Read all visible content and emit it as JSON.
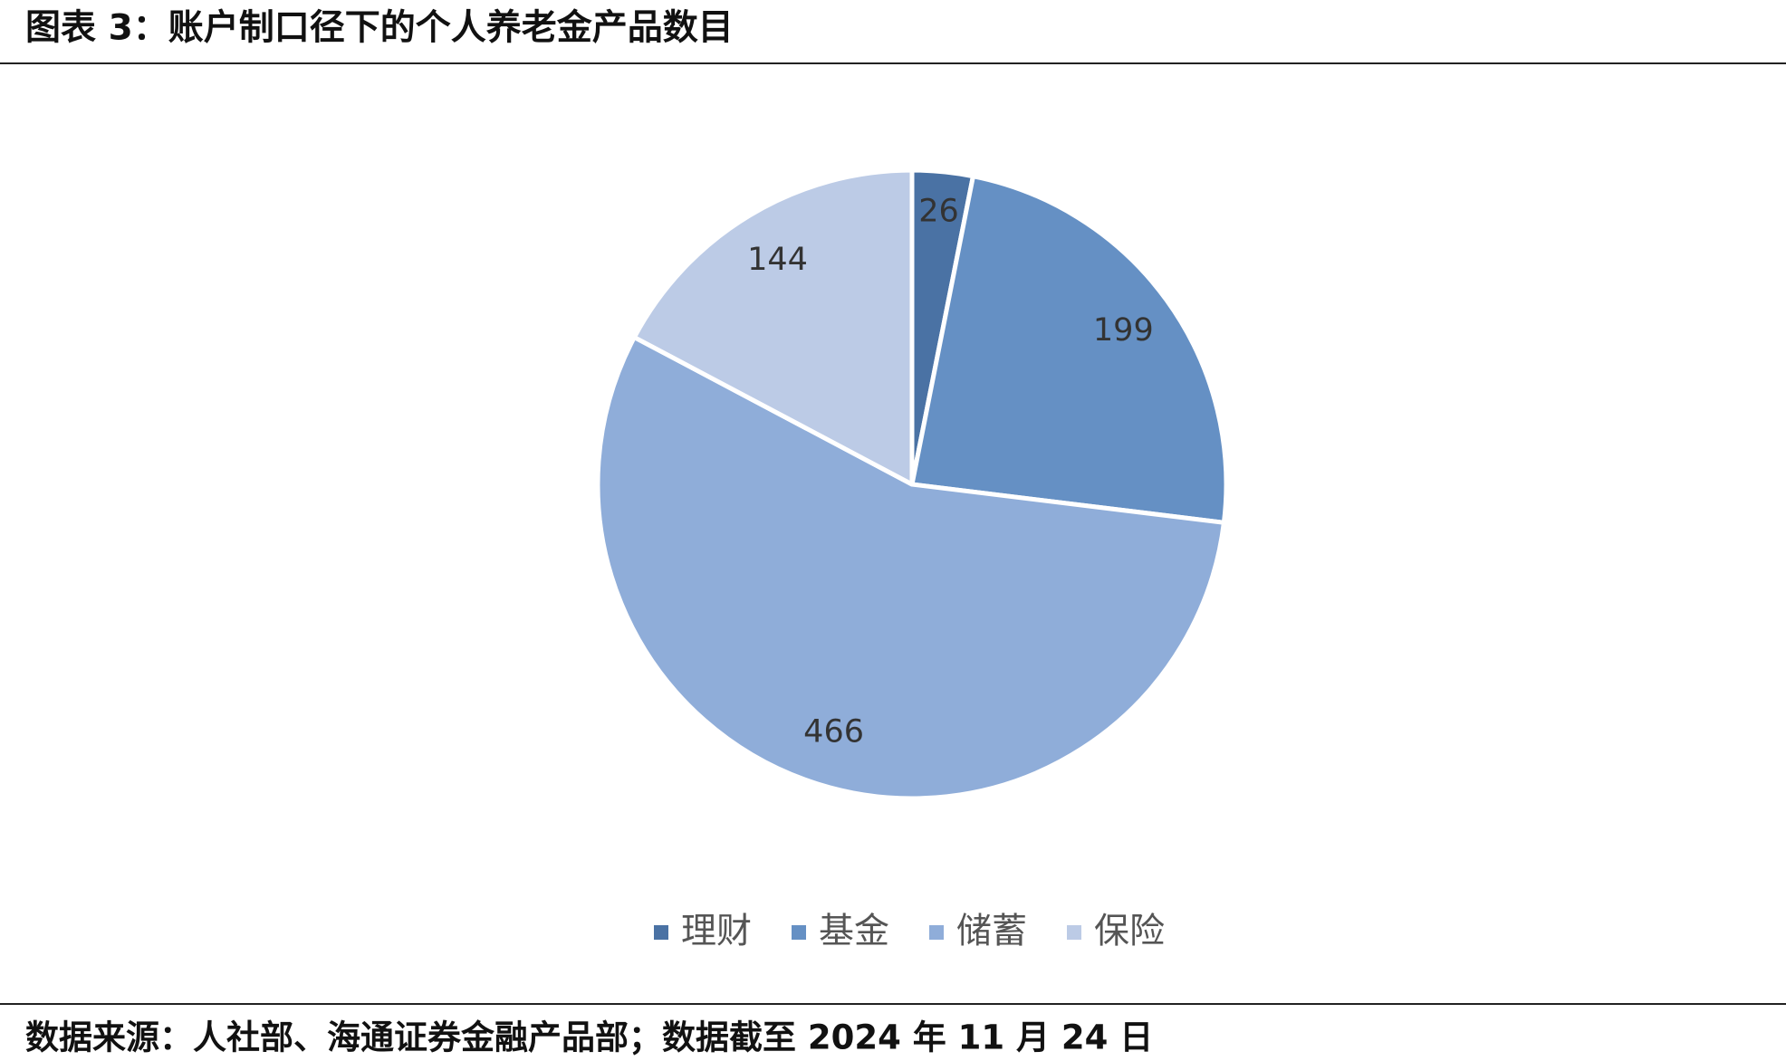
{
  "chart_data": {
    "type": "pie",
    "title": "图表 3：账户制口径下的个人养老金产品数目",
    "categories": [
      "理财",
      "基金",
      "储蓄",
      "保险"
    ],
    "values": [
      26,
      199,
      466,
      144
    ],
    "colors": [
      "#4a72a4",
      "#6590c4",
      "#8fadd9",
      "#bccbe6"
    ],
    "source": "数据来源：人社部、海通证券金融产品部；数据截至 2024 年 11 月 24 日"
  }
}
